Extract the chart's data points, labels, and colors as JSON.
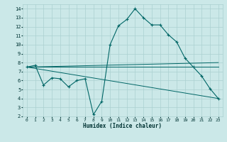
{
  "title": "",
  "xlabel": "Humidex (Indice chaleur)",
  "ylabel": "",
  "background_color": "#cbe8e8",
  "grid_color": "#aad0d0",
  "line_color": "#006666",
  "xlim": [
    -0.5,
    23.5
  ],
  "ylim": [
    2,
    14.5
  ],
  "xticks": [
    0,
    1,
    2,
    3,
    4,
    5,
    6,
    7,
    8,
    9,
    10,
    11,
    12,
    13,
    14,
    15,
    16,
    17,
    18,
    19,
    20,
    21,
    22,
    23
  ],
  "yticks": [
    2,
    3,
    4,
    5,
    6,
    7,
    8,
    9,
    10,
    11,
    12,
    13,
    14
  ],
  "series_main": {
    "x": [
      0,
      1,
      2,
      3,
      4,
      5,
      6,
      7,
      8,
      9,
      10,
      11,
      12,
      13,
      14,
      15,
      16,
      17,
      18,
      19,
      20,
      21,
      22,
      23
    ],
    "y": [
      7.5,
      7.7,
      5.5,
      6.3,
      6.2,
      5.3,
      6.0,
      6.2,
      2.2,
      3.7,
      10.0,
      12.1,
      12.8,
      14.0,
      13.0,
      12.2,
      12.2,
      11.1,
      10.3,
      8.5,
      7.5,
      6.5,
      5.1,
      4.0
    ]
  },
  "series_lines": [
    {
      "x": [
        0,
        23
      ],
      "y": [
        7.5,
        8.0
      ]
    },
    {
      "x": [
        0,
        23
      ],
      "y": [
        7.5,
        7.5
      ]
    },
    {
      "x": [
        0,
        23
      ],
      "y": [
        7.5,
        4.0
      ]
    }
  ]
}
